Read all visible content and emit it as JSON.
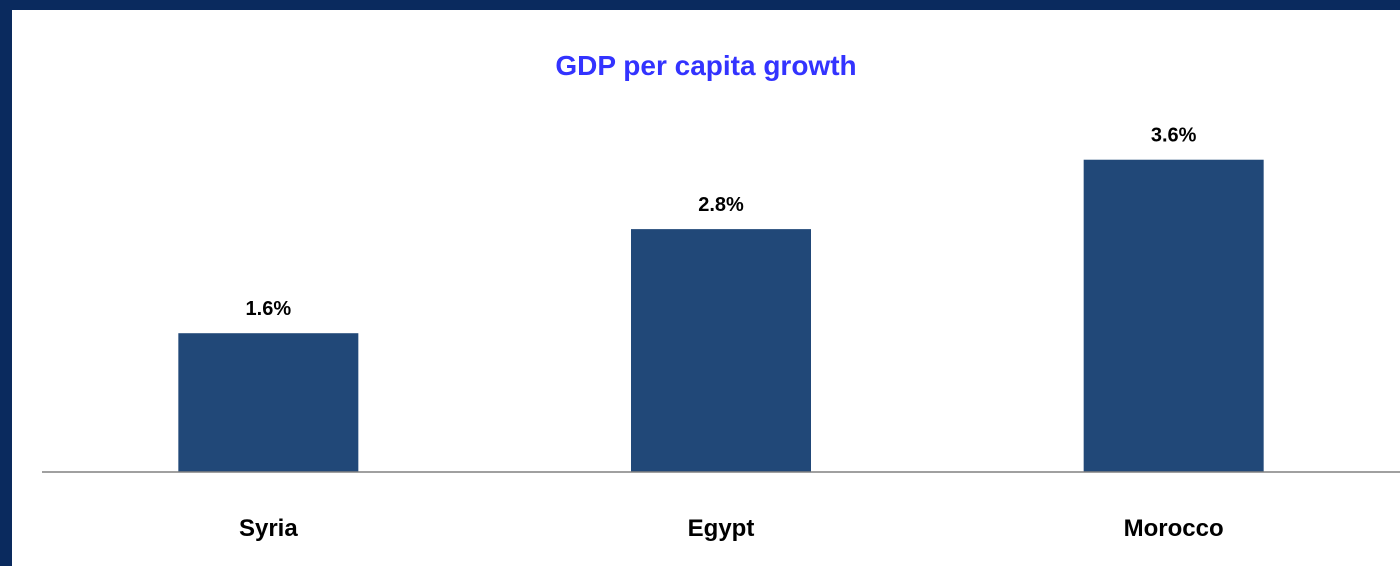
{
  "chart_data": {
    "type": "bar",
    "title": "GDP per capita growth",
    "categories": [
      "Syria",
      "Egypt",
      "Morocco"
    ],
    "values": [
      1.6,
      2.8,
      3.6
    ],
    "data_labels": [
      "1.6%",
      "2.8%",
      "3.6%"
    ],
    "unit": "%",
    "ylim": [
      0,
      4.3
    ],
    "grid": false,
    "legend": "none",
    "colors": {
      "bar": "#214878",
      "title": "#3333ff",
      "frame": "#0a2a5e",
      "axis": "#808080"
    }
  }
}
